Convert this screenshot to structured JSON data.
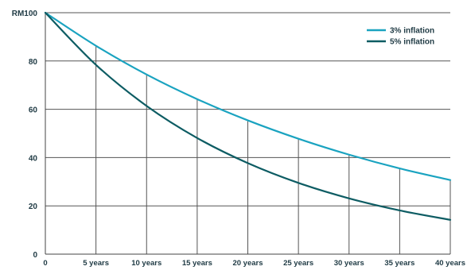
{
  "chart_data": {
    "type": "line",
    "title": "",
    "xlabel": "",
    "ylabel": "",
    "x": [
      0,
      5,
      10,
      15,
      20,
      25,
      30,
      35,
      40
    ],
    "x_tick_labels": [
      "0",
      "5 years",
      "10 years",
      "15 years",
      "20 years",
      "25 years",
      "30 years",
      "35 years",
      "40 years"
    ],
    "y_ticks": [
      0,
      20,
      40,
      60,
      80,
      100
    ],
    "y_tick_labels": [
      "0",
      "20",
      "40",
      "60",
      "80",
      "RM100"
    ],
    "xlim": [
      0,
      40
    ],
    "ylim": [
      0,
      100
    ],
    "grid": true,
    "legend_position": "top-right",
    "series": [
      {
        "name": "3% inflation",
        "color": "#1aa3c0",
        "values": [
          100,
          86.3,
          74.4,
          64.2,
          55.4,
          47.8,
          41.2,
          35.5,
          30.7
        ]
      },
      {
        "name": "5% inflation",
        "color": "#0d5c63",
        "values": [
          100,
          78.4,
          61.4,
          48.1,
          37.7,
          29.5,
          23.1,
          18.1,
          14.2
        ]
      }
    ]
  }
}
